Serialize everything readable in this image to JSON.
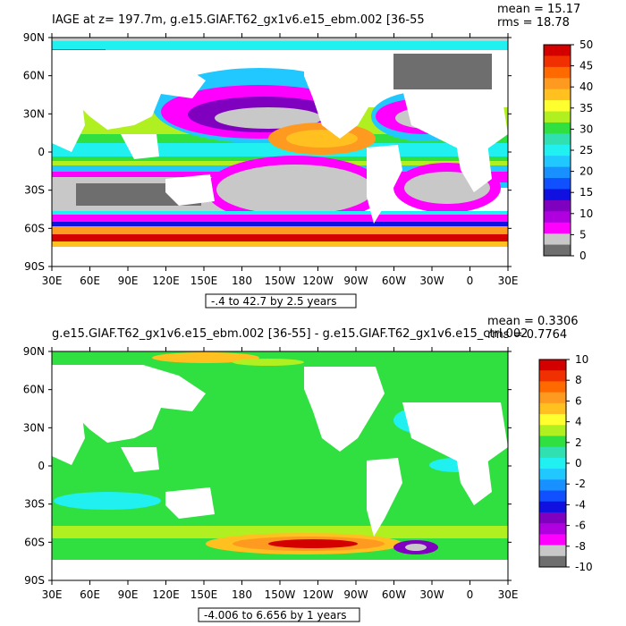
{
  "panels": [
    {
      "id": "top",
      "title": "IAGE at z= 197.7m, g.e15.GIAF.T62_gx1v6.e15_ebm.002 [36-55",
      "title_suffix": "]",
      "stats_mean": "mean = 15.17",
      "stats_rms": "rms = 18.78",
      "lat_labels": [
        "90N",
        "60N",
        "30N",
        "0",
        "30S",
        "60S",
        "90S"
      ],
      "lon_labels": [
        "30E",
        "60E",
        "90E",
        "120E",
        "150E",
        "180",
        "150W",
        "120W",
        "90W",
        "60W",
        "30W",
        "0",
        "30E"
      ],
      "contour_info": "-.4 to 42.7 by 2.5 years",
      "colorbar": {
        "labels": [
          "50",
          "45",
          "40",
          "35",
          "30",
          "25",
          "20",
          "15",
          "10",
          "5",
          "0"
        ],
        "colors": [
          "#d40000",
          "#f03000",
          "#ff6a00",
          "#ff9a20",
          "#ffc020",
          "#ffff30",
          "#b0f020",
          "#30e040",
          "#30e0b0",
          "#20f0f0",
          "#20c8ff",
          "#1890ff",
          "#1050ff",
          "#1010e0",
          "#8000c0",
          "#b000e0",
          "#ff00ff",
          "#c8c8c8",
          "#6e6e6e"
        ]
      }
    },
    {
      "id": "bottom",
      "title": "g.e15.GIAF.T62_gx1v6.e15_ebm.002 [36-55] - g.e15.GIAF.T62_gx1v6.e15_ctrl.002",
      "stats_mean": "mean = 0.3306",
      "stats_rms": "rms = 0.7764",
      "lat_labels": [
        "90N",
        "60N",
        "30N",
        "0",
        "30S",
        "60S",
        "90S"
      ],
      "lon_labels": [
        "30E",
        "60E",
        "90E",
        "120E",
        "150E",
        "180",
        "150W",
        "120W",
        "90W",
        "60W",
        "30W",
        "0",
        "30E"
      ],
      "contour_info": "-4.006 to 6.656 by 1 years",
      "colorbar": {
        "labels": [
          "10",
          "8",
          "6",
          "4",
          "2",
          "0",
          "-2",
          "-4",
          "-6",
          "-8",
          "-10"
        ],
        "colors": [
          "#d40000",
          "#f03000",
          "#ff6a00",
          "#ff9a20",
          "#ffc020",
          "#ffff30",
          "#b0f020",
          "#30e040",
          "#30e0b0",
          "#20f0f0",
          "#20c8ff",
          "#1890ff",
          "#1050ff",
          "#1010e0",
          "#8000c0",
          "#b000e0",
          "#ff00ff",
          "#c8c8c8",
          "#6e6e6e"
        ]
      }
    }
  ]
}
